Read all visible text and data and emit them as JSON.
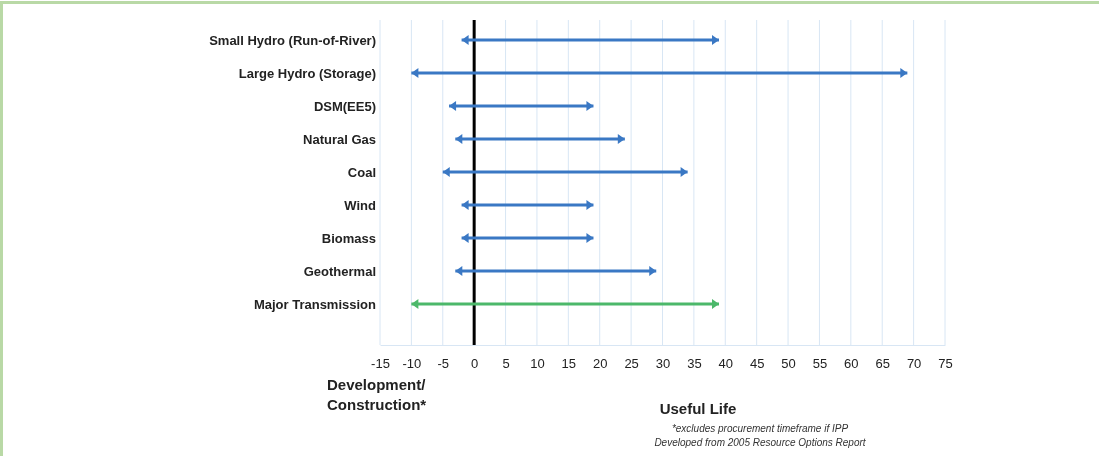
{
  "chart_data": {
    "type": "bar",
    "orientation": "horizontal",
    "xlabel": "Useful Life",
    "categories": [
      "Small Hydro (Run-of-River)",
      "Large Hydro (Storage)",
      "DSM(EE5)",
      "Natural Gas",
      "Coal",
      "Wind",
      "Biomass",
      "Geothermal",
      "Major Transmission"
    ],
    "base": [
      -2,
      -10,
      -4,
      -3,
      -5,
      -2,
      -2,
      -3,
      -10
    ],
    "values": [
      41,
      79,
      23,
      27,
      39,
      21,
      21,
      32,
      49
    ],
    "colors": [
      "#3a78c4",
      "#3a78c4",
      "#3a78c4",
      "#3a78c4",
      "#3a78c4",
      "#3a78c4",
      "#3a78c4",
      "#3a78c4",
      "#4cb86a"
    ],
    "xlim": [
      -15,
      75
    ],
    "xticks": [
      -15,
      -10,
      -5,
      0,
      5,
      10,
      15,
      20,
      25,
      30,
      35,
      40,
      45,
      50,
      55,
      60,
      65,
      70,
      75
    ],
    "grid": "x",
    "ref_lines": [
      {
        "axis": "x",
        "value": 0,
        "color": "#000000"
      }
    ],
    "annotations": [
      "Development/ Construction*",
      "*excludes procurement timeframe if IPP",
      "Developed from 2005 Resource Options Report"
    ]
  }
}
